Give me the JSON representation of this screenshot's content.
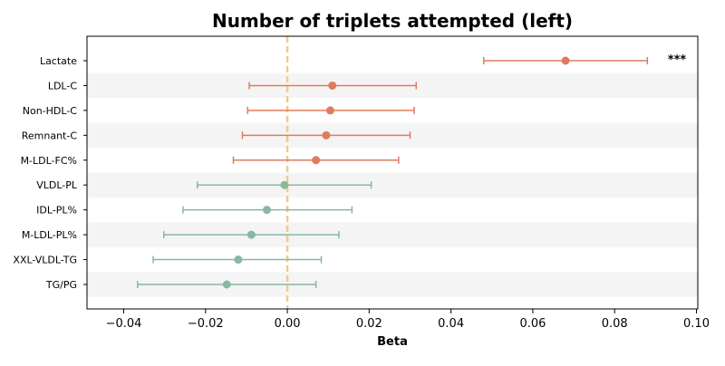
{
  "chart_data": {
    "type": "forest",
    "title": "Number of triplets attempted (left)",
    "xlabel": "Beta",
    "ylabel": "",
    "xlim": [
      -0.049,
      0.1
    ],
    "xticks": [
      -0.04,
      -0.02,
      0.0,
      0.02,
      0.04,
      0.06,
      0.08,
      0.1
    ],
    "xtick_labels": [
      "−0.04",
      "−0.02",
      "0.00",
      "0.02",
      "0.04",
      "0.06",
      "0.08",
      "0.10"
    ],
    "reference_line": 0.0,
    "grid": false,
    "alternating_row_shading": true,
    "colors": {
      "positive": "#e07b5f",
      "negative": "#87b8a0",
      "reference": "#f2c98a",
      "shade": "#f4f4f4"
    },
    "categories": [
      "Lactate",
      "LDL-C",
      "Non-HDL-C",
      "Remnant-C",
      "M-LDL-FC%",
      "VLDL-PL",
      "IDL-PL%",
      "M-LDL-PL%",
      "XXL-VLDL-TG",
      "TG/PG"
    ],
    "points": [
      {
        "label": "Lactate",
        "beta": 0.068,
        "ci_low": 0.048,
        "ci_high": 0.088,
        "annotation": "***"
      },
      {
        "label": "LDL-C",
        "beta": 0.011,
        "ci_low": -0.0093,
        "ci_high": 0.0315,
        "annotation": ""
      },
      {
        "label": "Non-HDL-C",
        "beta": 0.0105,
        "ci_low": -0.0097,
        "ci_high": 0.031,
        "annotation": ""
      },
      {
        "label": "Remnant-C",
        "beta": 0.0095,
        "ci_low": -0.011,
        "ci_high": 0.03,
        "annotation": ""
      },
      {
        "label": "M-LDL-FC%",
        "beta": 0.007,
        "ci_low": -0.0132,
        "ci_high": 0.0272,
        "annotation": ""
      },
      {
        "label": "VLDL-PL",
        "beta": -0.0007,
        "ci_low": -0.022,
        "ci_high": 0.0205,
        "annotation": ""
      },
      {
        "label": "IDL-PL%",
        "beta": -0.005,
        "ci_low": -0.0255,
        "ci_high": 0.0158,
        "annotation": ""
      },
      {
        "label": "M-LDL-PL%",
        "beta": -0.0088,
        "ci_low": -0.0302,
        "ci_high": 0.0126,
        "annotation": ""
      },
      {
        "label": "XXL-VLDL-TG",
        "beta": -0.012,
        "ci_low": -0.0328,
        "ci_high": 0.0083,
        "annotation": ""
      },
      {
        "label": "TG/PG",
        "beta": -0.0148,
        "ci_low": -0.0366,
        "ci_high": 0.007,
        "annotation": ""
      }
    ]
  }
}
